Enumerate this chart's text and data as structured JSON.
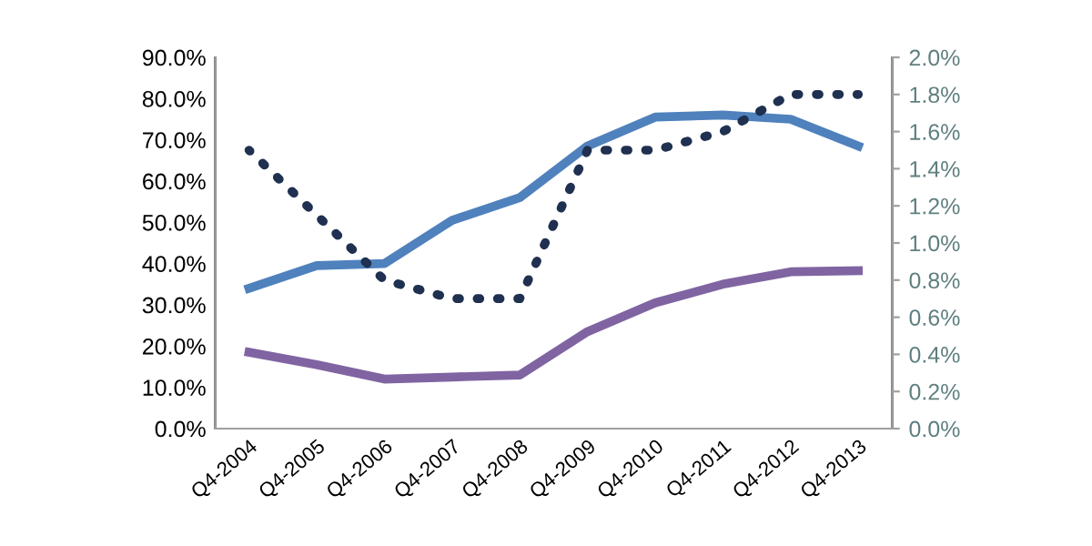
{
  "chart_data": {
    "type": "line",
    "categories": [
      "Q4-2004",
      "Q4-2005",
      "Q4-2006",
      "Q4-2007",
      "Q4-2008",
      "Q4-2009",
      "Q4-2010",
      "Q4-2011",
      "Q4-2012",
      "Q4-2013"
    ],
    "series": [
      {
        "color": "#4f81bd",
        "values": [
          34,
          39.5,
          40,
          50.5,
          56,
          68.5,
          75.5,
          76,
          75,
          68.5
        ]
      },
      {
        "color": "#8064a2",
        "values": [
          18.5,
          15.5,
          12,
          12.5,
          13,
          23.5,
          30.5,
          35,
          38,
          38.3
        ]
      },
      {
        "color": "#1f3050",
        "axis": "y2",
        "line_style": "dotted",
        "values": [
          1.5,
          1.15,
          0.8,
          0.7,
          0.7,
          1.5,
          1.5,
          1.6,
          1.8,
          1.8
        ]
      }
    ],
    "ylim": [
      0,
      90
    ],
    "yticks": [
      {
        "value": 0,
        "label": "0.0%"
      },
      {
        "value": 10,
        "label": "10.0%"
      },
      {
        "value": 20,
        "label": "20.0%"
      },
      {
        "value": 30,
        "label": "30.0%"
      },
      {
        "value": 40,
        "label": "40.0%"
      },
      {
        "value": 50,
        "label": "50.0%"
      },
      {
        "value": 60,
        "label": "60.0%"
      },
      {
        "value": 70,
        "label": "70.0%"
      },
      {
        "value": 80,
        "label": "80.0%"
      },
      {
        "value": 90,
        "label": "90.0%"
      }
    ],
    "y2lim": [
      0,
      2.0
    ],
    "y2ticks": [
      {
        "value": 0,
        "label": "0.0%"
      },
      {
        "value": 0.2,
        "label": "0.2%"
      },
      {
        "value": 0.4,
        "label": "0.4%"
      },
      {
        "value": 0.6,
        "label": "0.6%"
      },
      {
        "value": 0.8,
        "label": "0.8%"
      },
      {
        "value": 1.0,
        "label": "1.0%"
      },
      {
        "value": 1.2,
        "label": "1.2%"
      },
      {
        "value": 1.4,
        "label": "1.4%"
      },
      {
        "value": 1.6,
        "label": "1.6%"
      },
      {
        "value": 1.8,
        "label": "1.8%"
      },
      {
        "value": 2.0,
        "label": "2.0%"
      }
    ],
    "grid": false,
    "legend": false
  }
}
